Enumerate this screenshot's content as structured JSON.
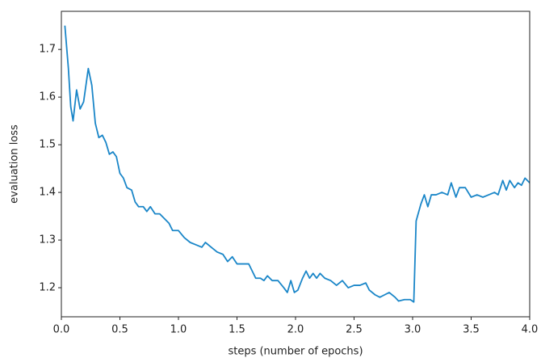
{
  "chart_data": {
    "type": "line",
    "x_label": "steps (number of epochs)",
    "y_label": "evaluation loss",
    "x": [
      0.03,
      0.06,
      0.08,
      0.1,
      0.13,
      0.16,
      0.19,
      0.23,
      0.26,
      0.29,
      0.32,
      0.35,
      0.38,
      0.41,
      0.44,
      0.47,
      0.5,
      0.53,
      0.56,
      0.6,
      0.63,
      0.66,
      0.7,
      0.73,
      0.76,
      0.8,
      0.84,
      0.88,
      0.92,
      0.95,
      1.0,
      1.05,
      1.1,
      1.15,
      1.2,
      1.23,
      1.28,
      1.33,
      1.38,
      1.42,
      1.46,
      1.5,
      1.55,
      1.6,
      1.63,
      1.66,
      1.7,
      1.73,
      1.76,
      1.8,
      1.85,
      1.9,
      1.93,
      1.96,
      1.99,
      2.02,
      2.06,
      2.09,
      2.12,
      2.15,
      2.18,
      2.21,
      2.25,
      2.3,
      2.35,
      2.4,
      2.45,
      2.5,
      2.55,
      2.6,
      2.63,
      2.68,
      2.72,
      2.76,
      2.8,
      2.85,
      2.88,
      2.93,
      2.98,
      3.01,
      3.03,
      3.07,
      3.1,
      3.13,
      3.16,
      3.2,
      3.25,
      3.3,
      3.33,
      3.37,
      3.4,
      3.45,
      3.5,
      3.55,
      3.6,
      3.65,
      3.7,
      3.73,
      3.77,
      3.8,
      3.83,
      3.87,
      3.9,
      3.93,
      3.96,
      4.0
    ],
    "series": [
      {
        "color": "#1a86c8",
        "values": [
          1.75,
          1.66,
          1.58,
          1.55,
          1.615,
          1.575,
          1.59,
          1.66,
          1.625,
          1.545,
          1.515,
          1.52,
          1.505,
          1.48,
          1.485,
          1.475,
          1.44,
          1.43,
          1.41,
          1.405,
          1.38,
          1.37,
          1.37,
          1.36,
          1.37,
          1.355,
          1.355,
          1.345,
          1.335,
          1.32,
          1.32,
          1.305,
          1.295,
          1.29,
          1.285,
          1.295,
          1.285,
          1.275,
          1.27,
          1.255,
          1.265,
          1.25,
          1.25,
          1.25,
          1.235,
          1.22,
          1.22,
          1.215,
          1.225,
          1.215,
          1.215,
          1.2,
          1.19,
          1.215,
          1.19,
          1.195,
          1.22,
          1.235,
          1.22,
          1.23,
          1.22,
          1.23,
          1.22,
          1.215,
          1.205,
          1.215,
          1.2,
          1.205,
          1.205,
          1.21,
          1.195,
          1.185,
          1.18,
          1.185,
          1.19,
          1.18,
          1.172,
          1.175,
          1.175,
          1.17,
          1.34,
          1.375,
          1.395,
          1.37,
          1.395,
          1.395,
          1.4,
          1.395,
          1.42,
          1.39,
          1.41,
          1.41,
          1.39,
          1.395,
          1.39,
          1.395,
          1.4,
          1.395,
          1.425,
          1.405,
          1.425,
          1.41,
          1.42,
          1.415,
          1.43,
          1.42
        ]
      }
    ],
    "xlim": [
      0,
      4
    ],
    "ylim": [
      1.139,
      1.78
    ],
    "xticks": [
      {
        "value": 0,
        "label": "0.0"
      },
      0.5,
      {
        "value": 1,
        "label": "1.0"
      },
      1.5,
      {
        "value": 2,
        "label": "2.0"
      },
      2.5,
      {
        "value": 3,
        "label": "3.0"
      },
      3.5,
      {
        "value": 4,
        "label": "4.0"
      }
    ],
    "yticks": [
      1.2,
      1.3,
      1.4,
      1.5,
      1.6,
      1.7
    ],
    "grid": false
  }
}
